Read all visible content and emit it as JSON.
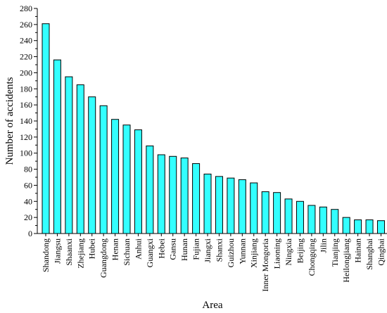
{
  "chart_data": {
    "type": "bar",
    "title": "",
    "xlabel": "Area",
    "ylabel": "Number of accidents",
    "ylim": [
      0,
      280
    ],
    "yticks": [
      0,
      20,
      40,
      60,
      80,
      100,
      120,
      140,
      160,
      180,
      200,
      220,
      240,
      260,
      280
    ],
    "grid": false,
    "bar_color": "#33ffff",
    "bar_edge_color": "#000000",
    "categories": [
      "Shandong",
      "Jiangsu",
      "Shaanxi",
      "Zhejiang",
      "Hubei",
      "Guangdong",
      "Henan",
      "Sichuan",
      "Anhui",
      "Guangxi",
      "Hebei",
      "Gansu",
      "Hunan",
      "Fujian",
      "Jiangxi",
      "Shanxi",
      "Guizhou",
      "Yunnan",
      "Xinjiang",
      "Inner Mongoria",
      "Liaoning",
      "Ningxia",
      "Beijing",
      "Chongqing",
      "Jilin",
      "Tianjing",
      "Heilongjiang",
      "Hainan",
      "Shanghai",
      "Qinghai"
    ],
    "values": [
      261,
      216,
      195,
      185,
      170,
      159,
      142,
      135,
      129,
      109,
      98,
      96,
      94,
      87,
      74,
      71,
      69,
      67,
      63,
      52,
      51,
      43,
      40,
      35,
      33,
      30,
      20,
      17,
      17,
      16
    ]
  }
}
